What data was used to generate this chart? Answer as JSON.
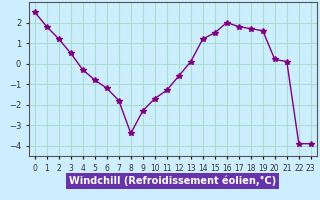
{
  "x": [
    0,
    1,
    2,
    3,
    4,
    5,
    6,
    7,
    8,
    9,
    10,
    11,
    12,
    13,
    14,
    15,
    16,
    17,
    18,
    19,
    20,
    21,
    22,
    23
  ],
  "y": [
    2.5,
    1.8,
    1.2,
    0.5,
    -0.3,
    -0.8,
    -1.2,
    -1.8,
    -3.4,
    -2.3,
    -1.7,
    -1.3,
    -0.6,
    0.1,
    1.2,
    1.5,
    2.0,
    1.8,
    1.7,
    1.6,
    0.2,
    0.1,
    -3.9,
    -3.9
  ],
  "line_color": "#800080",
  "marker": "*",
  "marker_size": 4,
  "bg_color": "#cceeff",
  "grid_color": "#aaddcc",
  "xlabel": "Windchill (Refroidissement éolien,°C)",
  "xlabel_fontsize": 7,
  "tick_fontsize": 6,
  "yticks": [
    -4,
    -3,
    -2,
    -1,
    0,
    1,
    2
  ],
  "xlim": [
    -0.5,
    23.5
  ],
  "ylim": [
    -4.5,
    3.0
  ],
  "xtick_labels": [
    "0",
    "1",
    "2",
    "3",
    "4",
    "5",
    "6",
    "7",
    "8",
    "9",
    "10",
    "11",
    "12",
    "13",
    "14",
    "15",
    "16",
    "17",
    "18",
    "19",
    "20",
    "21",
    "22",
    "23"
  ],
  "xlabel_bg": "#6633aa",
  "xlabel_color": "#ffffff"
}
